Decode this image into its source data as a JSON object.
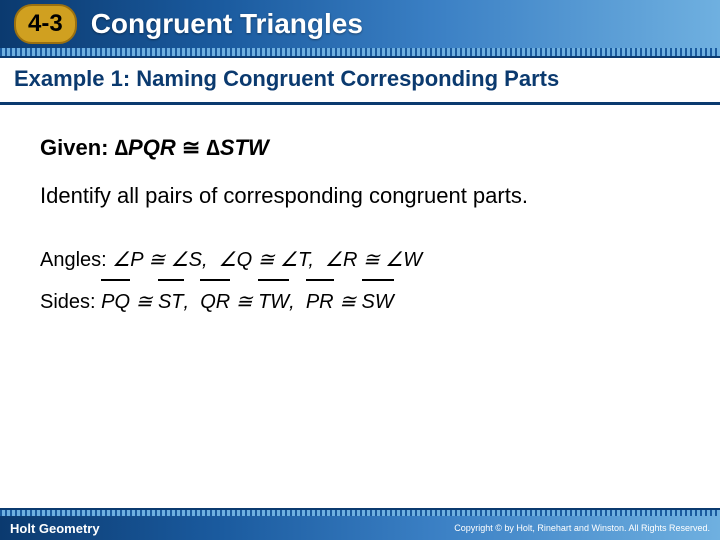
{
  "header": {
    "badge": "4-3",
    "title": "Congruent Triangles",
    "badge_bg": "#d0a020",
    "title_color": "#ffffff"
  },
  "subtitle": "Example 1: Naming Congruent Corresponding Parts",
  "given": {
    "label": "Given:",
    "tri1": "∆PQR",
    "cong": "≅",
    "tri2": "∆STW"
  },
  "instruction": "Identify all pairs of corresponding congruent parts.",
  "angles": {
    "label": "Angles:",
    "p": "∠P",
    "s": "∠S",
    "q": "∠Q",
    "t": "∠T",
    "r": "∠R",
    "w": "∠W",
    "cong": "≅"
  },
  "sides": {
    "label": "Sides:",
    "pq": "PQ",
    "st": "ST",
    "qr": "QR",
    "tw": "TW",
    "pr": "PR",
    "sw": "SW",
    "cong": "≅"
  },
  "footer": {
    "left": "Holt Geometry",
    "right": "Copyright © by Holt, Rinehart and Winston. All Rights Reserved."
  },
  "colors": {
    "accent": "#0b3a6f",
    "bg": "#ffffff"
  }
}
